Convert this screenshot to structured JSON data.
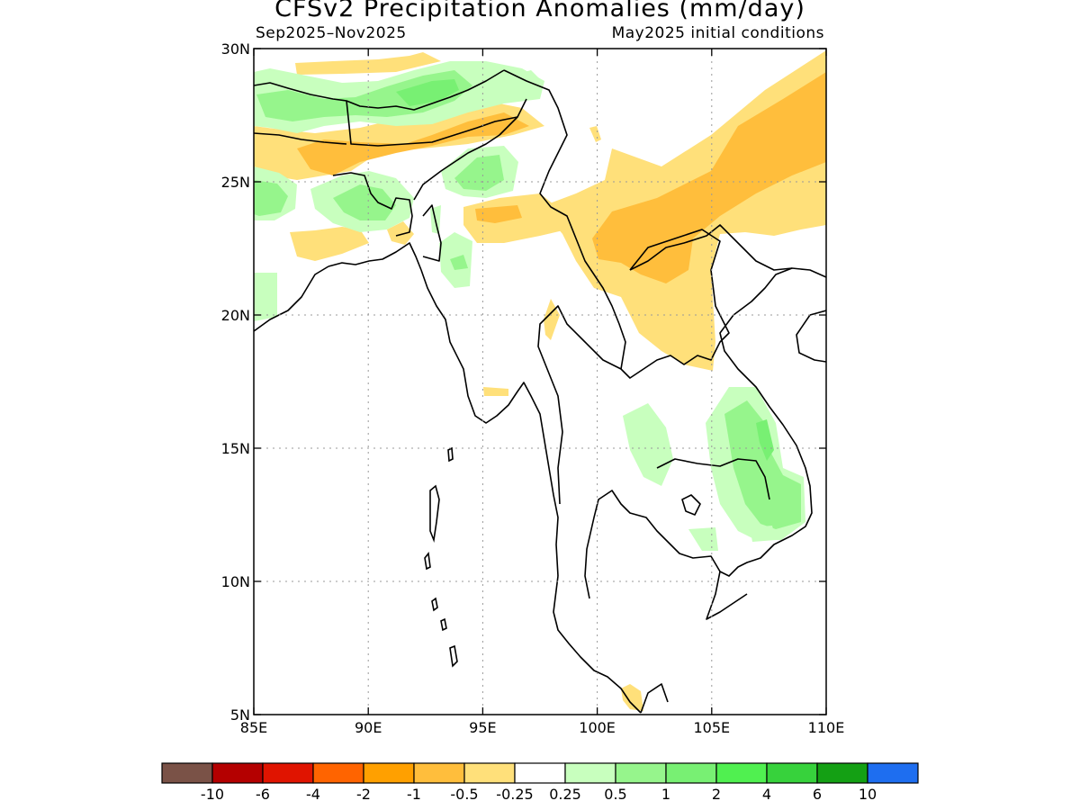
{
  "title": "CFSv2 Precipitation Anomalies (mm/day)",
  "subtitle_left": "Sep2025–Nov2025",
  "subtitle_right": "May2025 initial conditions",
  "map": {
    "lon_range": [
      85,
      110
    ],
    "lat_range": [
      5,
      30
    ],
    "lon_ticks": [
      {
        "value": 85,
        "label": "85E"
      },
      {
        "value": 90,
        "label": "90E"
      },
      {
        "value": 95,
        "label": "95E"
      },
      {
        "value": 100,
        "label": "100E"
      },
      {
        "value": 105,
        "label": "105E"
      },
      {
        "value": 110,
        "label": "110E"
      }
    ],
    "lat_ticks": [
      {
        "value": 5,
        "label": "5N"
      },
      {
        "value": 10,
        "label": "10N"
      },
      {
        "value": 15,
        "label": "15N"
      },
      {
        "value": 20,
        "label": "20N"
      },
      {
        "value": 25,
        "label": "25N"
      },
      {
        "value": 30,
        "label": "30N"
      }
    ],
    "grid": "dotted"
  },
  "colorbar": {
    "colors": [
      "#7a5247",
      "#b40000",
      "#e01400",
      "#ff6400",
      "#ffa000",
      "#ffbe3c",
      "#ffe07a",
      "#ffffff",
      "#c8ffbe",
      "#96f58c",
      "#78f073",
      "#50f050",
      "#37d23c",
      "#14a014",
      "#1e6ef0"
    ],
    "labels": [
      "-10",
      "-6",
      "-4",
      "-2",
      "-1",
      "-0.5",
      "-0.25",
      "0.25",
      "0.5",
      "1",
      "2",
      "4",
      "6",
      "10"
    ]
  },
  "colors": {
    "light_orange": "#ffe07a",
    "orange": "#ffbe3c",
    "dark_orange": "#ffa000",
    "light_green": "#c8ffbe",
    "green": "#96f58c",
    "mid_green": "#78f073",
    "bright_green": "#50f050"
  }
}
